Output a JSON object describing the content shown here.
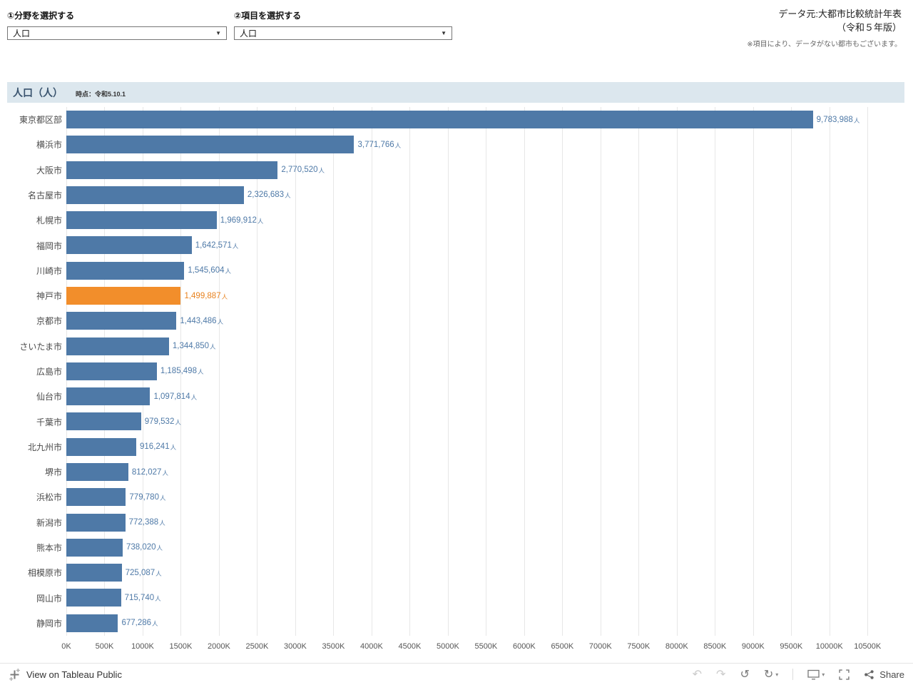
{
  "filters": {
    "field": {
      "label": "①分野を選択する",
      "value": "人口"
    },
    "item": {
      "label": "②項目を選択する",
      "value": "人口"
    }
  },
  "source_note": {
    "line1": "データ元:大都市比較統計年表",
    "line2": "（令和５年版）",
    "line3": "※項目により、データがない都市もございます。"
  },
  "chart_header": {
    "title": "人口（人）",
    "subtitle": "時点：令和5.10.1"
  },
  "chart_data": {
    "type": "bar",
    "orientation": "horizontal",
    "title": "人口（人）",
    "subtitle": "時点：令和5.10.1",
    "unit_suffix": "人",
    "categories": [
      "東京都区部",
      "横浜市",
      "大阪市",
      "名古屋市",
      "札幌市",
      "福岡市",
      "川崎市",
      "神戸市",
      "京都市",
      "さいたま市",
      "広島市",
      "仙台市",
      "千葉市",
      "北九州市",
      "堺市",
      "浜松市",
      "新潟市",
      "熊本市",
      "相模原市",
      "岡山市",
      "静岡市"
    ],
    "values": [
      9783988,
      3771766,
      2770520,
      2326683,
      1969912,
      1642571,
      1545604,
      1499887,
      1443486,
      1344850,
      1185498,
      1097814,
      979532,
      916241,
      812027,
      779780,
      772388,
      738020,
      725087,
      715740,
      677286
    ],
    "highlight_index": 7,
    "colors": {
      "bar": "#4e79a7",
      "highlight": "#f28e2b",
      "label": "#4e79a7",
      "highlight_label": "#e8821e"
    },
    "x_axis": {
      "max": 10750000,
      "grid": true,
      "tick_labels": [
        "0K",
        "500K",
        "1000K",
        "1500K",
        "2000K",
        "2500K",
        "3000K",
        "3500K",
        "4000K",
        "4500K",
        "5000K",
        "5500K",
        "6000K",
        "6500K",
        "7000K",
        "7500K",
        "8000K",
        "8500K",
        "9000K",
        "9500K",
        "10000K",
        "10500K"
      ]
    },
    "legend": "none"
  },
  "toolbar": {
    "view_text": "View on Tableau Public",
    "share_label": "Share",
    "icons": {
      "undo": "↶",
      "redo": "↷",
      "replay": "↺",
      "refresh": "↻",
      "caret": "▾"
    }
  }
}
